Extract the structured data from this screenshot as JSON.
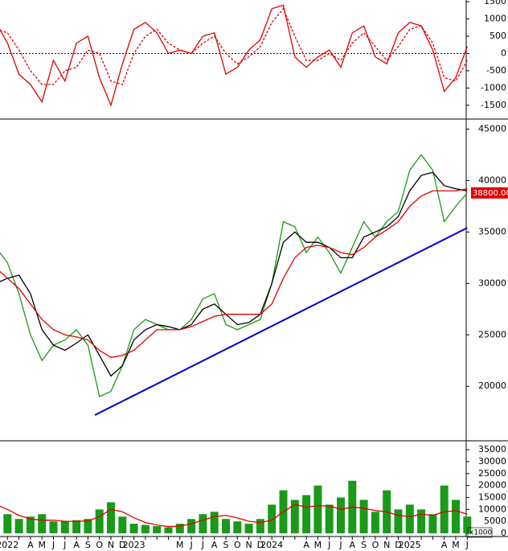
{
  "chart_data": [
    {
      "type": "line",
      "ylim": [
        -1900,
        1550
      ],
      "yticks": [
        -1500,
        -1000,
        -500,
        0,
        500,
        1000,
        1500
      ],
      "series": [
        {
          "color": "#e00000",
          "values": [
            900,
            300,
            -600,
            -900,
            -1400,
            -200,
            -800,
            300,
            500,
            -700,
            -1500,
            -300,
            700,
            900,
            600,
            0,
            100,
            0,
            500,
            600,
            -600,
            -400,
            100,
            400,
            1300,
            1400,
            -100,
            -400,
            -100,
            100,
            -400,
            600,
            800,
            -100,
            -300,
            600,
            900,
            800,
            100,
            -1100,
            -700,
            200
          ]
        },
        {
          "color": "#e00000",
          "dashed": true,
          "values": [
            700,
            600,
            100,
            -500,
            -900,
            -900,
            -500,
            -400,
            100,
            0,
            -800,
            -900,
            0,
            500,
            700,
            300,
            100,
            0,
            300,
            500,
            0,
            -300,
            -100,
            200,
            900,
            1300,
            500,
            -200,
            -200,
            0,
            -200,
            300,
            600,
            200,
            -200,
            200,
            700,
            800,
            300,
            -700,
            -800,
            -200
          ]
        }
      ]
    },
    {
      "type": "line",
      "ylim": [
        14700,
        45900
      ],
      "yticks": [
        20000,
        25000,
        30000,
        35000,
        40000,
        45000
      ],
      "series": [
        {
          "color": "#1a9a1a",
          "values": [
            33500,
            32000,
            29000,
            25000,
            22500,
            24000,
            24500,
            25500,
            24000,
            19000,
            19500,
            22000,
            25500,
            26500,
            26000,
            25500,
            25500,
            26500,
            28500,
            29000,
            26000,
            25500,
            26000,
            26500,
            30000,
            36000,
            35500,
            33000,
            34500,
            33000,
            31000,
            33500,
            36000,
            34500,
            36000,
            37000,
            41000,
            42500,
            41000,
            36000,
            37500,
            38800
          ]
        },
        {
          "color": "#000000",
          "values": [
            30000,
            30500,
            30800,
            29000,
            25500,
            24000,
            23500,
            24200,
            25000,
            23000,
            21000,
            22000,
            24500,
            25500,
            26000,
            25800,
            25500,
            26000,
            27500,
            28000,
            27000,
            26000,
            26200,
            27000,
            30000,
            34000,
            35000,
            34000,
            34000,
            33500,
            32500,
            32500,
            34500,
            35000,
            35500,
            36500,
            39000,
            40500,
            40800,
            39500,
            39200,
            39000
          ]
        },
        {
          "color": "#e00000",
          "values": [
            31500,
            30500,
            29500,
            28000,
            26500,
            25500,
            25000,
            24800,
            24500,
            23500,
            22800,
            23000,
            23500,
            24500,
            25500,
            25500,
            25500,
            25800,
            26300,
            26800,
            27000,
            27000,
            27000,
            27000,
            28000,
            30500,
            32500,
            33500,
            33700,
            33500,
            33000,
            32800,
            33500,
            34500,
            35200,
            36000,
            37500,
            38500,
            39000,
            39000,
            39000,
            39200
          ]
        }
      ],
      "trendline": {
        "color": "#0000cc",
        "x": [
          8.6,
          41
        ],
        "values": [
          17200,
          35400
        ]
      },
      "last_price": {
        "value": 38800,
        "label": "38800.00",
        "color": "#e00000"
      }
    },
    {
      "type": "bar",
      "categories": [
        null,
        "2022",
        null,
        "A",
        "M",
        "J",
        "J",
        "A",
        "S",
        "O",
        "N",
        "D",
        "2023",
        null,
        null,
        null,
        "M",
        "J",
        "J",
        "A",
        "S",
        "O",
        "N",
        "D",
        "2024",
        null,
        null,
        "A",
        "M",
        "J",
        "J",
        "A",
        "S",
        "O",
        "N",
        "D",
        "2025",
        null,
        null,
        "A",
        "M",
        "J"
      ],
      "ylim": [
        -1350,
        38400
      ],
      "yticks": [
        0,
        5000,
        10000,
        15000,
        20000,
        25000,
        30000,
        35000
      ],
      "unit": "x1000",
      "color": "#1a9a1a",
      "values": [
        12000,
        8000,
        6000,
        7000,
        8000,
        5000,
        5000,
        5500,
        6000,
        10000,
        13000,
        7000,
        4000,
        3500,
        3000,
        2500,
        4000,
        6000,
        8000,
        9000,
        6000,
        5000,
        4000,
        6000,
        12000,
        18000,
        14000,
        16000,
        20000,
        12000,
        15000,
        22000,
        14000,
        9000,
        18000,
        10000,
        12000,
        10000,
        8000,
        20000,
        14000,
        7000
      ],
      "series": [
        {
          "color": "#e00000",
          "values": [
            12000,
            10000,
            7500,
            6000,
            5500,
            5500,
            5000,
            5000,
            5200,
            7000,
            10000,
            9000,
            6500,
            4500,
            3500,
            2800,
            3000,
            4000,
            5500,
            7000,
            7500,
            6500,
            5000,
            4500,
            5500,
            9000,
            12000,
            11000,
            11500,
            11500,
            10000,
            11000,
            10500,
            9500,
            9000,
            7500,
            7000,
            8000,
            7500,
            9000,
            9500,
            8000
          ]
        }
      ]
    }
  ]
}
